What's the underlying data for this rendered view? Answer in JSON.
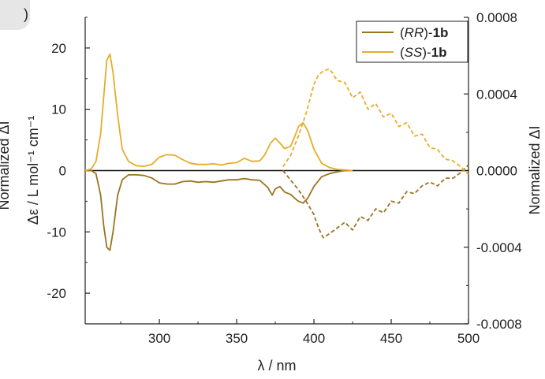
{
  "panel_label": ")",
  "chart_data": {
    "type": "line",
    "xlabel": "λ / nm",
    "ylabel": "Δε / L mol⁻¹ cm⁻¹",
    "y2label": "Normalized ΔI",
    "left_cut_label": "Normalized ΔI",
    "xlim": [
      252,
      500
    ],
    "ylim": [
      -25,
      25
    ],
    "y2lim": [
      -0.0008,
      0.0008
    ],
    "xticks": [
      300,
      350,
      400,
      450,
      500
    ],
    "yticks": [
      -20,
      -10,
      0,
      10,
      20
    ],
    "y2ticks": [
      "-0.0008",
      "-0.0004",
      "0.0000",
      "0.0004",
      "0.0008"
    ],
    "grid": false,
    "legend_position": "top-right",
    "legend": [
      {
        "prefix": "(",
        "italic": "RR",
        "mid": ")-",
        "bold": "1b",
        "color": "#9b7421"
      },
      {
        "prefix": "(",
        "italic": "SS",
        "mid": ")-",
        "bold": "1b",
        "color": "#e6ad2a"
      }
    ],
    "series": [
      {
        "name": "(RR)-1b",
        "axis": "left",
        "style": "solid",
        "color": "#9b7421",
        "x": [
          252,
          256,
          259,
          262,
          264,
          266,
          268,
          270,
          273,
          276,
          280,
          285,
          290,
          295,
          300,
          305,
          310,
          315,
          320,
          325,
          330,
          335,
          340,
          345,
          350,
          355,
          360,
          365,
          370,
          373,
          375,
          378,
          381,
          385,
          388,
          390,
          393,
          396,
          400,
          405,
          410,
          415,
          420
        ],
        "y": [
          0,
          0,
          -0.5,
          -4,
          -9,
          -12.5,
          -13,
          -10,
          -4,
          -1.5,
          -0.7,
          -0.7,
          -0.8,
          -1.2,
          -2.0,
          -2.2,
          -2.2,
          -1.8,
          -1.7,
          -1.9,
          -1.8,
          -1.9,
          -1.7,
          -1.5,
          -1.5,
          -1.3,
          -1.5,
          -1.6,
          -2.7,
          -4.0,
          -3.0,
          -2.6,
          -3.5,
          -3.9,
          -4.6,
          -5.0,
          -5.3,
          -4.5,
          -2.6,
          -1.0,
          -0.5,
          -0.2,
          0
        ]
      },
      {
        "name": "(SS)-1b",
        "axis": "left",
        "style": "solid",
        "color": "#e6ad2a",
        "x": [
          252,
          256,
          259,
          262,
          264,
          266,
          268,
          270,
          273,
          276,
          280,
          285,
          290,
          295,
          300,
          305,
          310,
          315,
          320,
          325,
          330,
          335,
          340,
          345,
          350,
          355,
          360,
          365,
          368,
          372,
          375,
          378,
          381,
          385,
          388,
          390,
          393,
          396,
          400,
          405,
          410,
          415,
          420,
          425
        ],
        "y": [
          0,
          0.3,
          1.5,
          6,
          12,
          18,
          19,
          16,
          9,
          3.5,
          1.5,
          0.8,
          0.7,
          1.0,
          2.2,
          2.6,
          2.5,
          1.8,
          1.2,
          1.0,
          1.0,
          1.1,
          0.9,
          1.2,
          1.3,
          2.0,
          1.5,
          1.6,
          2.5,
          4.5,
          5.3,
          4.5,
          3.6,
          4.0,
          5.8,
          7.2,
          7.8,
          6.5,
          3.5,
          1.2,
          0.5,
          0.2,
          0.1,
          0
        ]
      },
      {
        "name": "(RR)-1b ΔI",
        "axis": "right",
        "style": "dashed",
        "color": "#9b7421",
        "x": [
          380,
          385,
          390,
          395,
          400,
          403,
          406,
          410,
          415,
          420,
          425,
          430,
          435,
          440,
          445,
          450,
          455,
          460,
          465,
          470,
          475,
          480,
          485,
          490,
          495,
          500
        ],
        "y": [
          0.0,
          -5e-05,
          -0.0001,
          -0.00016,
          -0.00023,
          -0.0003,
          -0.00035,
          -0.00033,
          -0.0003,
          -0.00027,
          -0.00031,
          -0.00024,
          -0.00026,
          -0.0002,
          -0.00022,
          -0.00016,
          -0.00017,
          -0.00011,
          -0.00012,
          -8e-05,
          -6e-05,
          -8e-05,
          -4e-05,
          -4e-05,
          -1e-05,
          3e-05
        ]
      },
      {
        "name": "(SS)-1b ΔI",
        "axis": "right",
        "style": "dashed",
        "color": "#e6ad2a",
        "x": [
          380,
          385,
          390,
          395,
          400,
          403,
          406,
          410,
          412,
          415,
          420,
          425,
          430,
          435,
          440,
          445,
          450,
          455,
          460,
          465,
          470,
          475,
          480,
          485,
          490,
          495,
          500
        ],
        "y": [
          2e-05,
          8e-05,
          0.00018,
          0.0003,
          0.00045,
          0.0005,
          0.00052,
          0.00053,
          0.00051,
          0.00047,
          0.00046,
          0.00038,
          0.00041,
          0.00032,
          0.00035,
          0.00028,
          0.0003,
          0.00023,
          0.00025,
          0.00018,
          0.00019,
          0.00012,
          0.00011,
          6e-05,
          5e-05,
          2e-05,
          -2e-05
        ]
      }
    ]
  }
}
